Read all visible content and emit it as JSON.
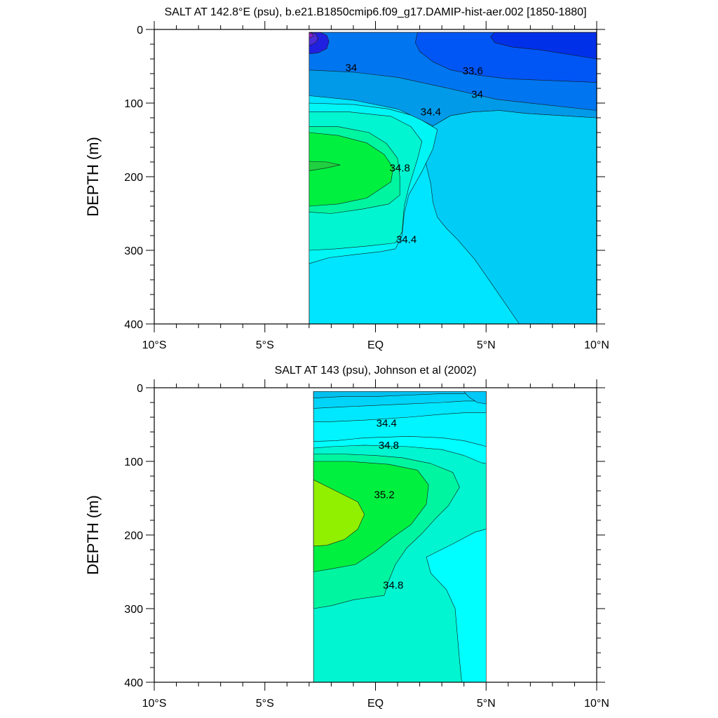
{
  "chart_data": [
    {
      "type": "contour",
      "title": "SALT AT 142.8°E (psu), b.e21.B1850cmip6.f09_g17.DAMIP-hist-aer.002 [1850-1880]",
      "ylabel": "DEPTH (m)",
      "xlabel": "",
      "xlim": [
        -10,
        10
      ],
      "ylim": [
        0,
        400
      ],
      "y_reversed": true,
      "data_extent": {
        "x": [
          -3,
          10
        ],
        "y": [
          4,
          400
        ]
      },
      "x_ticks": [
        -10,
        -5,
        0,
        5,
        10
      ],
      "x_tick_labels": [
        "10°S",
        "5°S",
        "EQ",
        "5°N",
        "10°N"
      ],
      "y_ticks": [
        0,
        100,
        200,
        300,
        400
      ],
      "y_tick_labels": [
        "0",
        "100",
        "200",
        "300",
        "400"
      ],
      "contour_labels": [
        {
          "text": "34",
          "x": -1.1,
          "y": 52
        },
        {
          "text": "33.6",
          "x": 4.4,
          "y": 56
        },
        {
          "text": "34",
          "x": 4.6,
          "y": 88
        },
        {
          "text": "34.4",
          "x": 2.5,
          "y": 112
        },
        {
          "text": "34.8",
          "x": 1.1,
          "y": 188
        },
        {
          "text": "34.4",
          "x": 1.4,
          "y": 285
        }
      ],
      "regions": [
        {
          "color": "#00e5ff",
          "points": [
            [
              -3,
              400
            ],
            [
              -3,
              4
            ],
            [
              10,
              4
            ],
            [
              10,
              400
            ]
          ]
        },
        {
          "color": "#00ccf5",
          "points": [
            [
              10,
              120
            ],
            [
              6.8,
              114
            ],
            [
              5.6,
              110
            ],
            [
              4.4,
              112
            ],
            [
              3.4,
              117
            ],
            [
              2.6,
              131
            ],
            [
              2.3,
              146
            ],
            [
              2.2,
              163
            ],
            [
              2.3,
              185
            ],
            [
              2.5,
              210
            ],
            [
              2.6,
              235
            ],
            [
              2.8,
              255
            ],
            [
              3.2,
              270
            ],
            [
              3.7,
              285
            ],
            [
              4.5,
              313
            ],
            [
              5.4,
              352
            ],
            [
              6.5,
              400
            ],
            [
              10,
              400
            ]
          ]
        },
        {
          "color": "#00f5f5",
          "points": [
            [
              -3,
              400
            ],
            [
              -3,
              318
            ],
            [
              -2.1,
              310
            ],
            [
              -1,
              306
            ],
            [
              0.2,
              302
            ],
            [
              0.9,
              298
            ],
            [
              1.2,
              280
            ],
            [
              1.3,
              250
            ],
            [
              1.5,
              225
            ],
            [
              2.1,
              193
            ],
            [
              2.6,
              162
            ],
            [
              2.8,
              136
            ],
            [
              1.8,
              118
            ],
            [
              0.6,
              108
            ],
            [
              -1,
              102
            ],
            [
              -3,
              100
            ]
          ]
        },
        {
          "color": "#00f5d0",
          "points": [
            [
              -3,
              300
            ],
            [
              -1.8,
              298
            ],
            [
              -0.3,
              294
            ],
            [
              0.9,
              290
            ],
            [
              1.2,
              275
            ],
            [
              1.3,
              240
            ],
            [
              1.5,
              215
            ],
            [
              1.9,
              176
            ],
            [
              2.1,
              152
            ],
            [
              1.6,
              132
            ],
            [
              0.7,
              118
            ],
            [
              -1.2,
              112
            ],
            [
              -3,
              112
            ]
          ]
        },
        {
          "color": "#00f5a0",
          "points": [
            [
              -3,
              248
            ],
            [
              -2,
              250
            ],
            [
              -0.6,
              244
            ],
            [
              0.6,
              237
            ],
            [
              1.1,
              225
            ],
            [
              1.1,
              200
            ],
            [
              1.0,
              175
            ],
            [
              0.5,
              155
            ],
            [
              -0.3,
              140
            ],
            [
              -1.7,
              132
            ],
            [
              -3,
              132
            ]
          ]
        },
        {
          "color": "#00f040",
          "points": [
            [
              -3,
              240
            ],
            [
              -1.7,
              237
            ],
            [
              -0.4,
              229
            ],
            [
              0.7,
              207
            ],
            [
              0.8,
              188
            ],
            [
              0.4,
              170
            ],
            [
              -0.4,
              154
            ],
            [
              -1.7,
              144
            ],
            [
              -3,
              140
            ]
          ]
        },
        {
          "color": "#20d040",
          "points": [
            [
              -3,
              192
            ],
            [
              -2.2,
              188
            ],
            [
              -1.6,
              184
            ],
            [
              -2.2,
              180
            ],
            [
              -3,
              179
            ]
          ]
        },
        {
          "color": "#009ae8",
          "points": [
            [
              10,
              120
            ],
            [
              6.8,
              114
            ],
            [
              5.6,
              110
            ],
            [
              4.4,
              112
            ],
            [
              3.4,
              117
            ],
            [
              2.6,
              131
            ],
            [
              2.0,
              122
            ],
            [
              1,
              108
            ],
            [
              -1,
              96
            ],
            [
              -3,
              90
            ],
            [
              -3,
              4
            ],
            [
              10,
              4
            ]
          ]
        },
        {
          "color": "#0075f0",
          "points": [
            [
              10,
              110
            ],
            [
              5.5,
              95
            ],
            [
              3,
              78
            ],
            [
              1,
              65
            ],
            [
              -1,
              58
            ],
            [
              -3,
              55
            ],
            [
              -3,
              4
            ],
            [
              10,
              4
            ]
          ]
        },
        {
          "color": "#0055f5",
          "points": [
            [
              10,
              72
            ],
            [
              6,
              67
            ],
            [
              4.6,
              62
            ],
            [
              3.4,
              55
            ],
            [
              2.6,
              44
            ],
            [
              2.0,
              30
            ],
            [
              1.8,
              18
            ],
            [
              1.9,
              4
            ],
            [
              10,
              4
            ]
          ]
        },
        {
          "color": "#0030e8",
          "points": [
            [
              10,
              40
            ],
            [
              7.5,
              28
            ],
            [
              6.2,
              24
            ],
            [
              5.4,
              18
            ],
            [
              5.2,
              10
            ],
            [
              5.4,
              4
            ],
            [
              10,
              4
            ]
          ]
        },
        {
          "color": "#2020e0",
          "points": [
            [
              -3,
              33
            ],
            [
              -2.6,
              32
            ],
            [
              -2.2,
              26
            ],
            [
              -2.1,
              16
            ],
            [
              -2.2,
              8
            ],
            [
              -2.5,
              4
            ],
            [
              -3,
              4
            ]
          ]
        },
        {
          "color": "#4a2cd8",
          "points": [
            [
              -3,
              22
            ],
            [
              -2.7,
              18
            ],
            [
              -2.6,
              12
            ],
            [
              -2.7,
              6
            ],
            [
              -3,
              4
            ]
          ]
        },
        {
          "color": "#8a1fc4",
          "points": [
            [
              -3,
              12
            ],
            [
              -2.8,
              9
            ],
            [
              -2.9,
              5
            ],
            [
              -3,
              4
            ]
          ]
        }
      ]
    },
    {
      "type": "contour",
      "title": "SALT AT 143 (psu), Johnson et al (2002)",
      "ylabel": "DEPTH (m)",
      "xlabel": "",
      "xlim": [
        -10,
        10
      ],
      "ylim": [
        0,
        400
      ],
      "y_reversed": true,
      "data_extent": {
        "x": [
          -2.8,
          5
        ],
        "y": [
          5,
          400
        ]
      },
      "x_ticks": [
        -10,
        -5,
        0,
        5,
        10
      ],
      "x_tick_labels": [
        "10°S",
        "5°S",
        "EQ",
        "5°N",
        "10°N"
      ],
      "y_ticks": [
        0,
        100,
        200,
        300,
        400
      ],
      "y_tick_labels": [
        "0",
        "100",
        "200",
        "300",
        "400"
      ],
      "contour_labels": [
        {
          "text": "34.4",
          "x": 0.5,
          "y": 48
        },
        {
          "text": "34.8",
          "x": 0.6,
          "y": 78
        },
        {
          "text": "35.2",
          "x": 0.4,
          "y": 145
        },
        {
          "text": "34.8",
          "x": 0.8,
          "y": 268
        }
      ],
      "regions": [
        {
          "color": "#00ffff",
          "points": [
            [
              -2.8,
              400
            ],
            [
              -2.8,
              5
            ],
            [
              5,
              5
            ],
            [
              5,
              400
            ]
          ]
        },
        {
          "color": "#00f5d0",
          "points": [
            [
              -2.8,
              400
            ],
            [
              -2.8,
              82
            ],
            [
              -2,
              80
            ],
            [
              -0.5,
              78
            ],
            [
              1.5,
              80
            ],
            [
              3,
              84
            ],
            [
              4,
              92
            ],
            [
              4.8,
              102
            ],
            [
              5,
              103
            ],
            [
              5,
              192
            ],
            [
              4.5,
              196
            ],
            [
              3.5,
              212
            ],
            [
              2.3,
              230
            ],
            [
              2.5,
              252
            ],
            [
              3.2,
              274
            ],
            [
              3.6,
              300
            ],
            [
              3.7,
              335
            ],
            [
              3.8,
              370
            ],
            [
              3.9,
              400
            ]
          ]
        },
        {
          "color": "#00f5a0",
          "points": [
            [
              -2.8,
              300
            ],
            [
              -2,
              296
            ],
            [
              -1,
              288
            ],
            [
              0.4,
              282
            ],
            [
              0.6,
              262
            ],
            [
              0.9,
              240
            ],
            [
              1.4,
              218
            ],
            [
              2.1,
              198
            ],
            [
              2.7,
              178
            ],
            [
              3.3,
              160
            ],
            [
              3.8,
              135
            ],
            [
              3.5,
              115
            ],
            [
              2.5,
              103
            ],
            [
              1.2,
              95
            ],
            [
              0,
              92
            ],
            [
              -1.5,
              90
            ],
            [
              -2.8,
              90
            ]
          ]
        },
        {
          "color": "#00f040",
          "points": [
            [
              -2.8,
              250
            ],
            [
              -2,
              246
            ],
            [
              -0.9,
              240
            ],
            [
              0,
              222
            ],
            [
              0.8,
              203
            ],
            [
              1.6,
              186
            ],
            [
              2.3,
              158
            ],
            [
              2.4,
              132
            ],
            [
              1.9,
              112
            ],
            [
              0.6,
              104
            ],
            [
              -1.2,
              100
            ],
            [
              -2.8,
              100
            ]
          ]
        },
        {
          "color": "#90f000",
          "points": [
            [
              -2.8,
              215
            ],
            [
              -2.2,
              214
            ],
            [
              -1.4,
              206
            ],
            [
              -0.8,
              192
            ],
            [
              -0.5,
              172
            ],
            [
              -0.8,
              155
            ],
            [
              -1.8,
              140
            ],
            [
              -2.8,
              125
            ]
          ]
        },
        {
          "color": "#00f5ff",
          "points": [
            [
              -2.8,
              73
            ],
            [
              -1.8,
              72
            ],
            [
              -0.5,
              68
            ],
            [
              1.5,
              66
            ],
            [
              3,
              68
            ],
            [
              4,
              72
            ],
            [
              4.8,
              78
            ],
            [
              5,
              80
            ],
            [
              5,
              5
            ],
            [
              -2.8,
              5
            ]
          ]
        },
        {
          "color": "#00e8ff",
          "points": [
            [
              -2.8,
              46
            ],
            [
              -2,
              46
            ],
            [
              -0.5,
              44
            ],
            [
              1.5,
              40
            ],
            [
              3,
              36
            ],
            [
              4,
              34
            ],
            [
              5,
              34
            ],
            [
              5,
              5
            ],
            [
              -2.8,
              5
            ]
          ]
        },
        {
          "color": "#00d4f8",
          "points": [
            [
              -2.8,
              28
            ],
            [
              -1.5,
              26
            ],
            [
              0,
              24
            ],
            [
              1.5,
              22
            ],
            [
              3,
              20
            ],
            [
              4,
              18
            ],
            [
              5,
              18
            ],
            [
              5,
              5
            ],
            [
              -2.8,
              5
            ]
          ]
        },
        {
          "color": "#00c0f0",
          "points": [
            [
              -2.8,
              14
            ],
            [
              -1.5,
              12
            ],
            [
              0,
              12
            ],
            [
              1.5,
              10
            ],
            [
              3,
              8
            ],
            [
              5,
              8
            ],
            [
              5,
              5
            ],
            [
              -2.8,
              5
            ]
          ]
        },
        {
          "color": "#00c8f8",
          "points": [
            [
              4,
              5
            ],
            [
              4.2,
              12
            ],
            [
              4.6,
              20
            ],
            [
              5,
              22
            ],
            [
              5,
              5
            ]
          ]
        }
      ]
    }
  ]
}
